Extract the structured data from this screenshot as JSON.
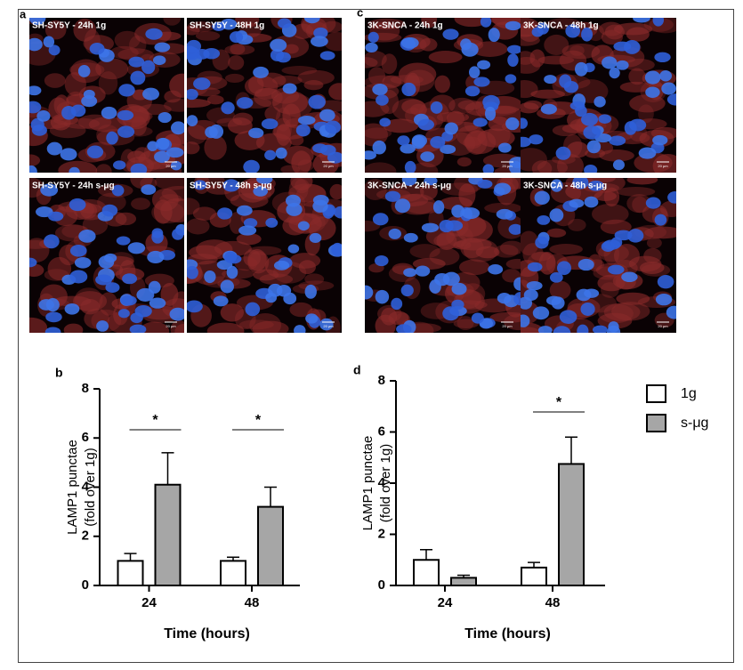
{
  "image_panels": [
    {
      "panel": "a",
      "images": [
        {
          "label": "SH-SY5Y - 24h 1g"
        },
        {
          "label": "SH-SY5Y - 48H 1g"
        },
        {
          "label": "SH-SY5Y - 24h s-μg"
        },
        {
          "label": "SH-SY5Y - 48h s-μg"
        }
      ]
    },
    {
      "panel": "c",
      "images": [
        {
          "label": "3K-SNCA - 24h 1g"
        },
        {
          "label": "3K-SNCA - 48h 1g"
        },
        {
          "label": "3K-SNCA - 24h s-μg"
        },
        {
          "label": "3K-SNCA - 48h s-μg"
        }
      ]
    }
  ],
  "scale_bar_label": "20 μm",
  "chart_data": [
    {
      "type": "bar",
      "panel": "b",
      "ylabel": [
        "LAMP1 punctae",
        "(fold over 1g)"
      ],
      "xlabel": "Time (hours)",
      "categories": [
        "24",
        "48"
      ],
      "series": [
        {
          "name": "1g",
          "color": "#ffffff",
          "values": [
            1.0,
            1.0
          ],
          "errors": [
            0.3,
            0.15
          ]
        },
        {
          "name": "s-μg",
          "color": "#a6a6a6",
          "values": [
            4.1,
            3.2
          ],
          "errors": [
            1.3,
            0.8
          ]
        }
      ],
      "significance": [
        {
          "label": "*",
          "category": "24"
        },
        {
          "label": "*",
          "category": "48"
        }
      ],
      "ylim": [
        0,
        8
      ],
      "yticks": [
        0,
        2,
        4,
        6,
        8
      ]
    },
    {
      "type": "bar",
      "panel": "d",
      "ylabel": [
        "LAMP1 punctae",
        "(fold over 1g)"
      ],
      "xlabel": "Time (hours)",
      "categories": [
        "24",
        "48"
      ],
      "series": [
        {
          "name": "1g",
          "color": "#ffffff",
          "values": [
            1.0,
            0.7
          ],
          "errors": [
            0.4,
            0.2
          ]
        },
        {
          "name": "s-μg",
          "color": "#a6a6a6",
          "values": [
            0.3,
            4.75
          ],
          "errors": [
            0.1,
            1.05
          ]
        }
      ],
      "significance": [
        {
          "label": "*",
          "category": "48"
        }
      ],
      "ylim": [
        0,
        8
      ],
      "yticks": [
        0,
        2,
        4,
        6,
        8
      ],
      "legend": "right"
    }
  ]
}
